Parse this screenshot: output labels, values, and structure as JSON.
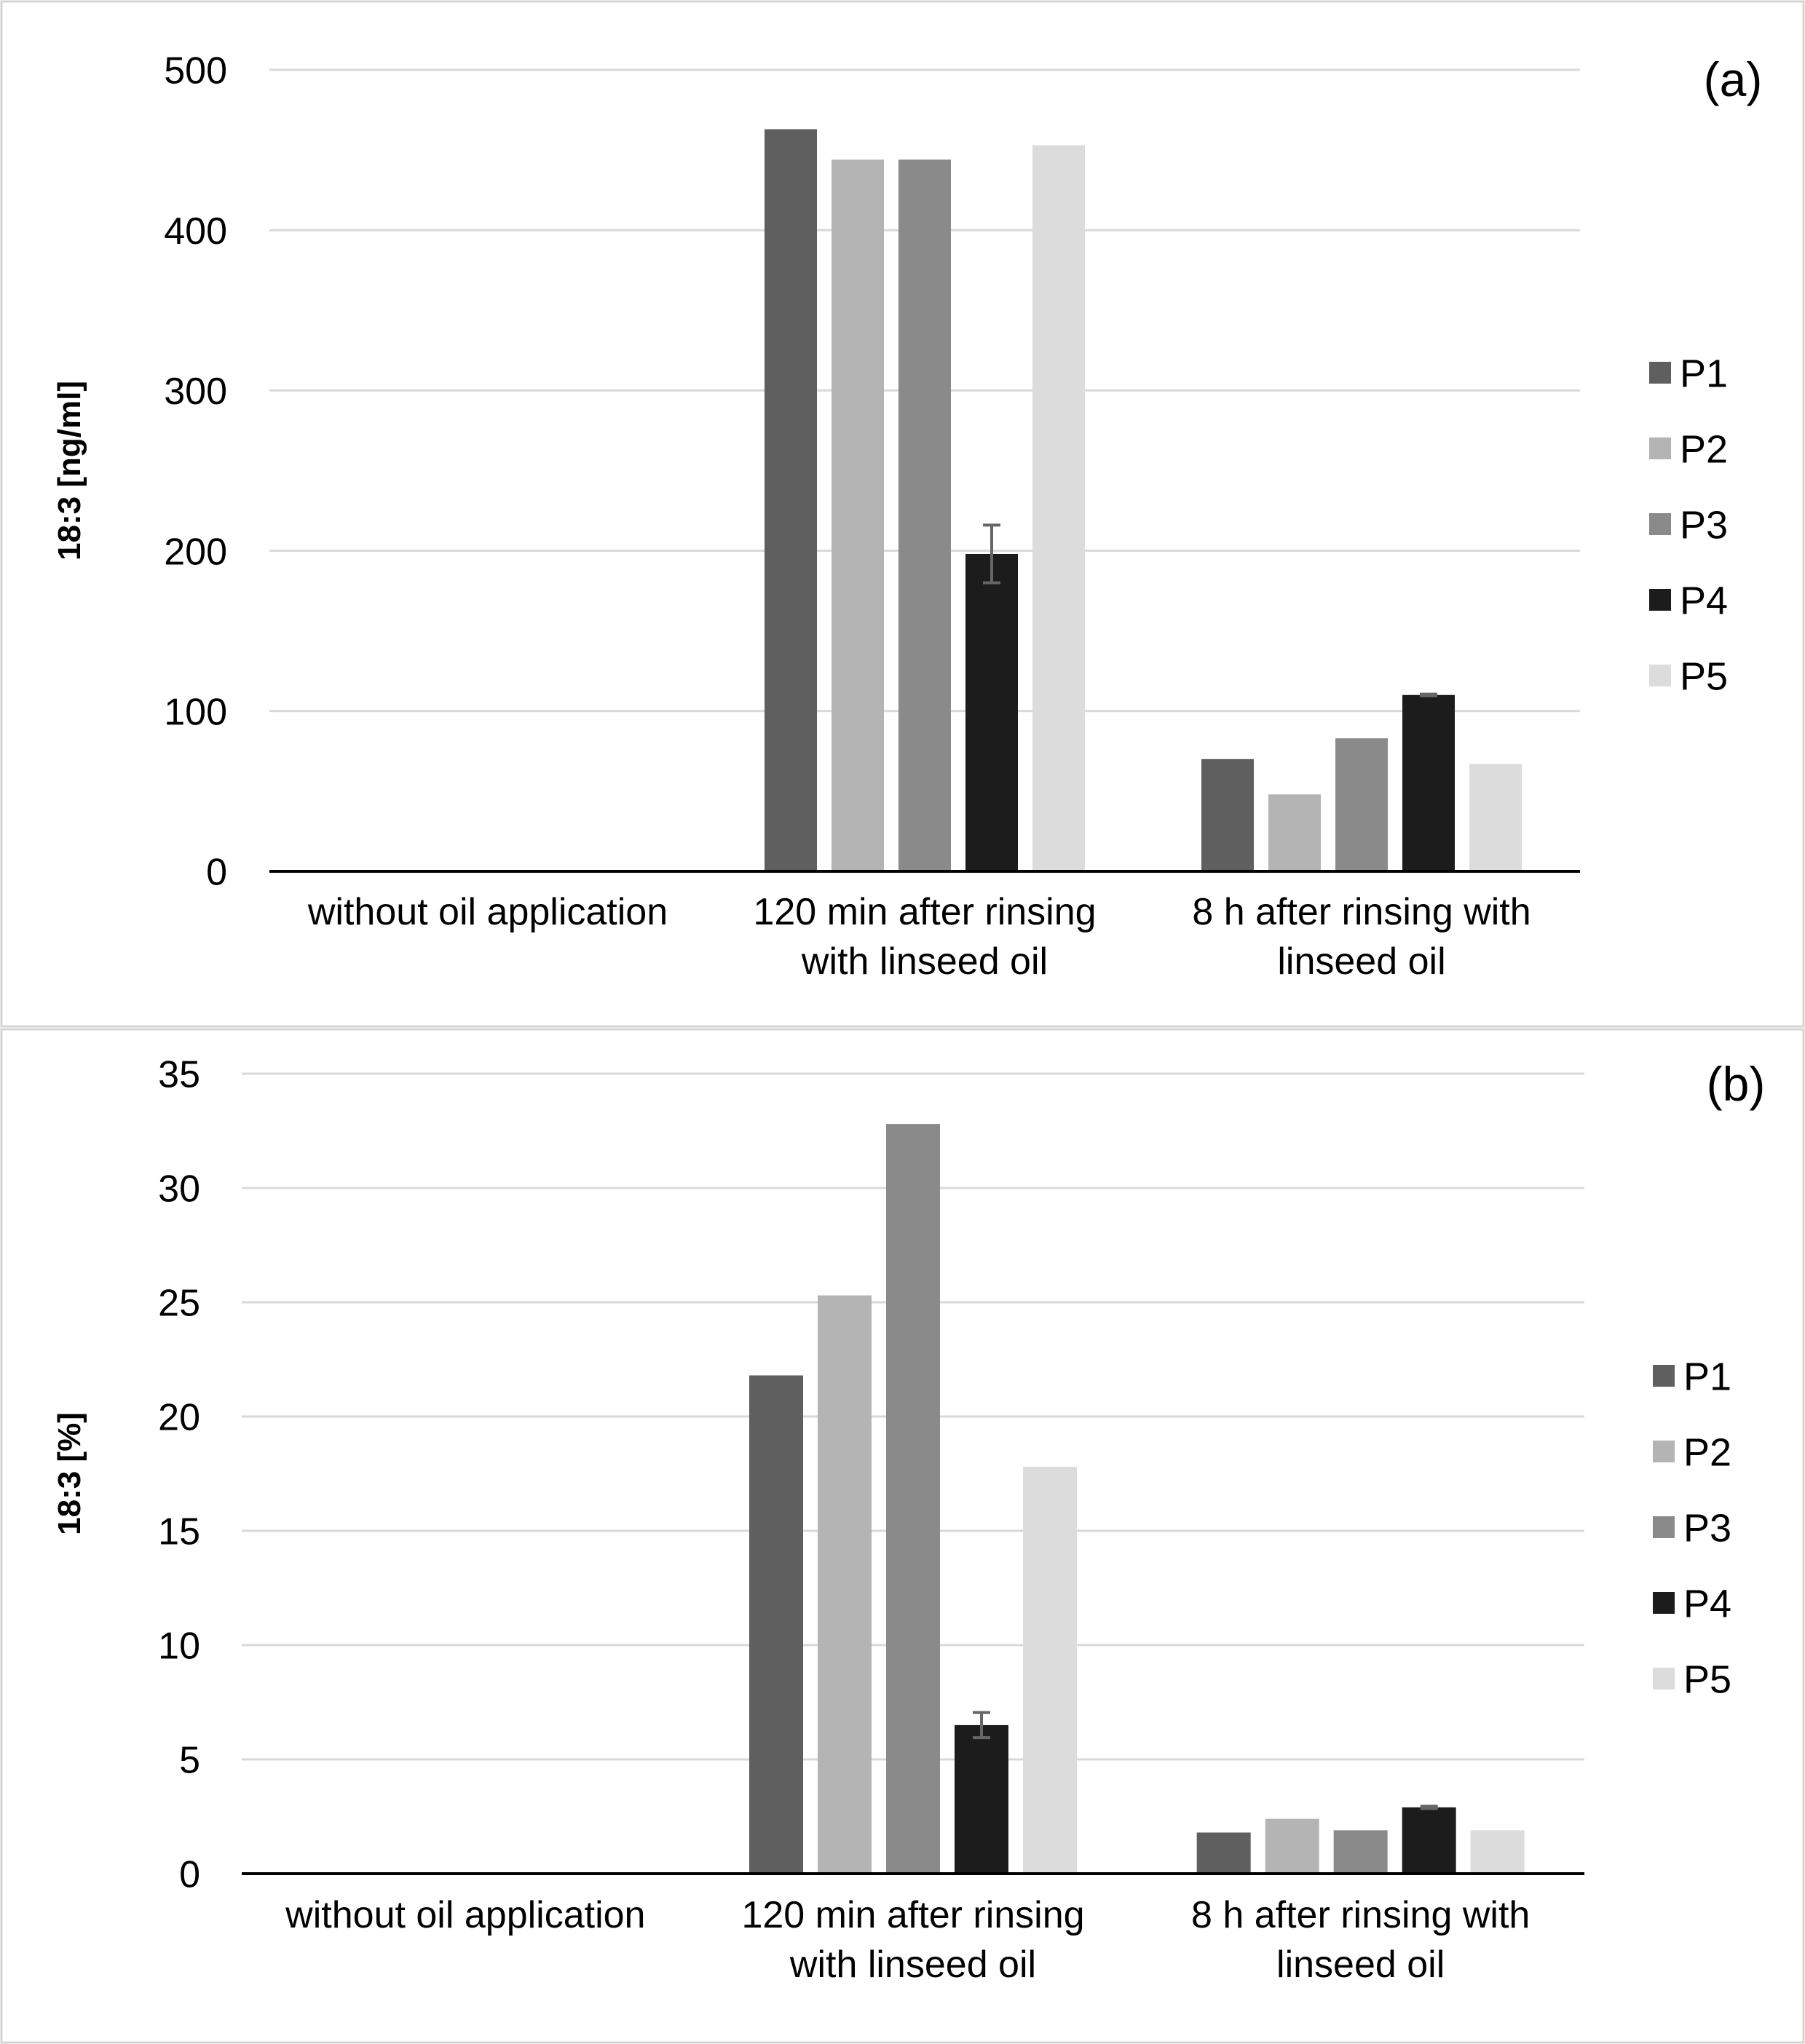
{
  "chart_data": [
    {
      "panel_label": "(a)",
      "type": "bar",
      "title": "",
      "xlabel": "",
      "ylabel": "18:3 [ng/ml]",
      "ylim": [
        0,
        500
      ],
      "yticks": [
        0,
        100,
        200,
        300,
        400,
        500
      ],
      "ytick_labels": [
        "0",
        "100",
        "200",
        "300",
        "400",
        "500"
      ],
      "grid": true,
      "legend_position": "right",
      "categories": [
        [
          "without oil application"
        ],
        [
          "120 min after rinsing",
          "with linseed oil"
        ],
        [
          "8 h after rinsing with",
          "linseed oil"
        ]
      ],
      "series": [
        {
          "name": "P1",
          "color": "#5f5f5f",
          "values": [
            0,
            463,
            70
          ]
        },
        {
          "name": "P2",
          "color": "#b4b4b4",
          "values": [
            0,
            444,
            48
          ]
        },
        {
          "name": "P3",
          "color": "#8a8a8a",
          "values": [
            0,
            444,
            83
          ]
        },
        {
          "name": "P4",
          "color": "#1c1c1c",
          "values": [
            0,
            198,
            110
          ],
          "errors": [
            0,
            18,
            0.5
          ]
        },
        {
          "name": "P5",
          "color": "#dcdcdc",
          "values": [
            0,
            453,
            67
          ]
        }
      ]
    },
    {
      "panel_label": "(b)",
      "type": "bar",
      "title": "",
      "xlabel": "",
      "ylabel": "18:3 [%]",
      "ylim": [
        0,
        35
      ],
      "yticks": [
        0,
        5,
        10,
        15,
        20,
        25,
        30,
        35
      ],
      "ytick_labels": [
        "0",
        "5",
        "10",
        "15",
        "20",
        "25",
        "30",
        "35"
      ],
      "grid": true,
      "legend_position": "right",
      "categories": [
        [
          "without oil application"
        ],
        [
          "120 min after rinsing",
          "with linseed oil"
        ],
        [
          "8 h after rinsing with",
          "linseed oil"
        ]
      ],
      "series": [
        {
          "name": "P1",
          "color": "#5f5f5f",
          "values": [
            0,
            21.8,
            1.8
          ]
        },
        {
          "name": "P2",
          "color": "#b4b4b4",
          "values": [
            0,
            25.3,
            2.4
          ]
        },
        {
          "name": "P3",
          "color": "#8a8a8a",
          "values": [
            0,
            32.8,
            1.9
          ]
        },
        {
          "name": "P4",
          "color": "#1c1c1c",
          "values": [
            0,
            6.5,
            2.9
          ],
          "errors": [
            0,
            0.55,
            0.05
          ]
        },
        {
          "name": "P5",
          "color": "#dcdcdc",
          "values": [
            0,
            17.8,
            1.9
          ]
        }
      ]
    }
  ]
}
